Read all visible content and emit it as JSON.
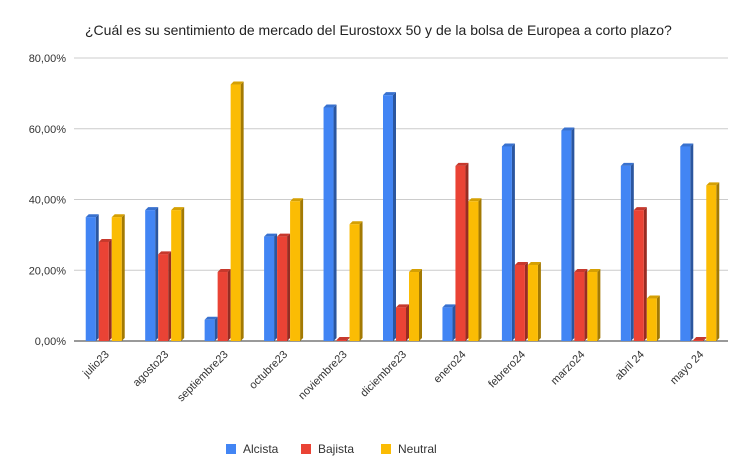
{
  "chart_data": {
    "type": "bar",
    "title": "¿Cuál es su sentimiento de mercado del Eurostoxx 50 y de la bolsa de Europea a corto plazo?",
    "categories": [
      "julio23",
      "agosto23",
      "septiembre23",
      "octubre23",
      "noviembre23",
      "diciembre23",
      "enero24",
      "febrero24",
      "marzo24",
      "abril 24",
      "mayo 24"
    ],
    "series": [
      {
        "name": "Alcista",
        "color": "#4285f4",
        "values": [
          35,
          37,
          6,
          29.5,
          66,
          69.5,
          9.5,
          55,
          59.5,
          49.5,
          55
        ]
      },
      {
        "name": "Bajista",
        "color": "#ea4335",
        "values": [
          28,
          24.5,
          19.5,
          29.5,
          0,
          9.5,
          49.5,
          21.5,
          19.5,
          37,
          0
        ]
      },
      {
        "name": "Neutral",
        "color": "#fbbc04",
        "values": [
          35,
          37,
          72.5,
          39.5,
          33,
          19.5,
          39.5,
          21.5,
          19.5,
          12,
          44
        ]
      }
    ],
    "ylim": [
      0,
      80
    ],
    "yticks": [
      0,
      20,
      40,
      60,
      80
    ],
    "ytick_labels": [
      "0,00%",
      "20,00%",
      "40,00%",
      "60,00%",
      "80,00%"
    ],
    "xlabel": "",
    "ylabel": "",
    "legend_position": "bottom",
    "gridlines": true
  }
}
